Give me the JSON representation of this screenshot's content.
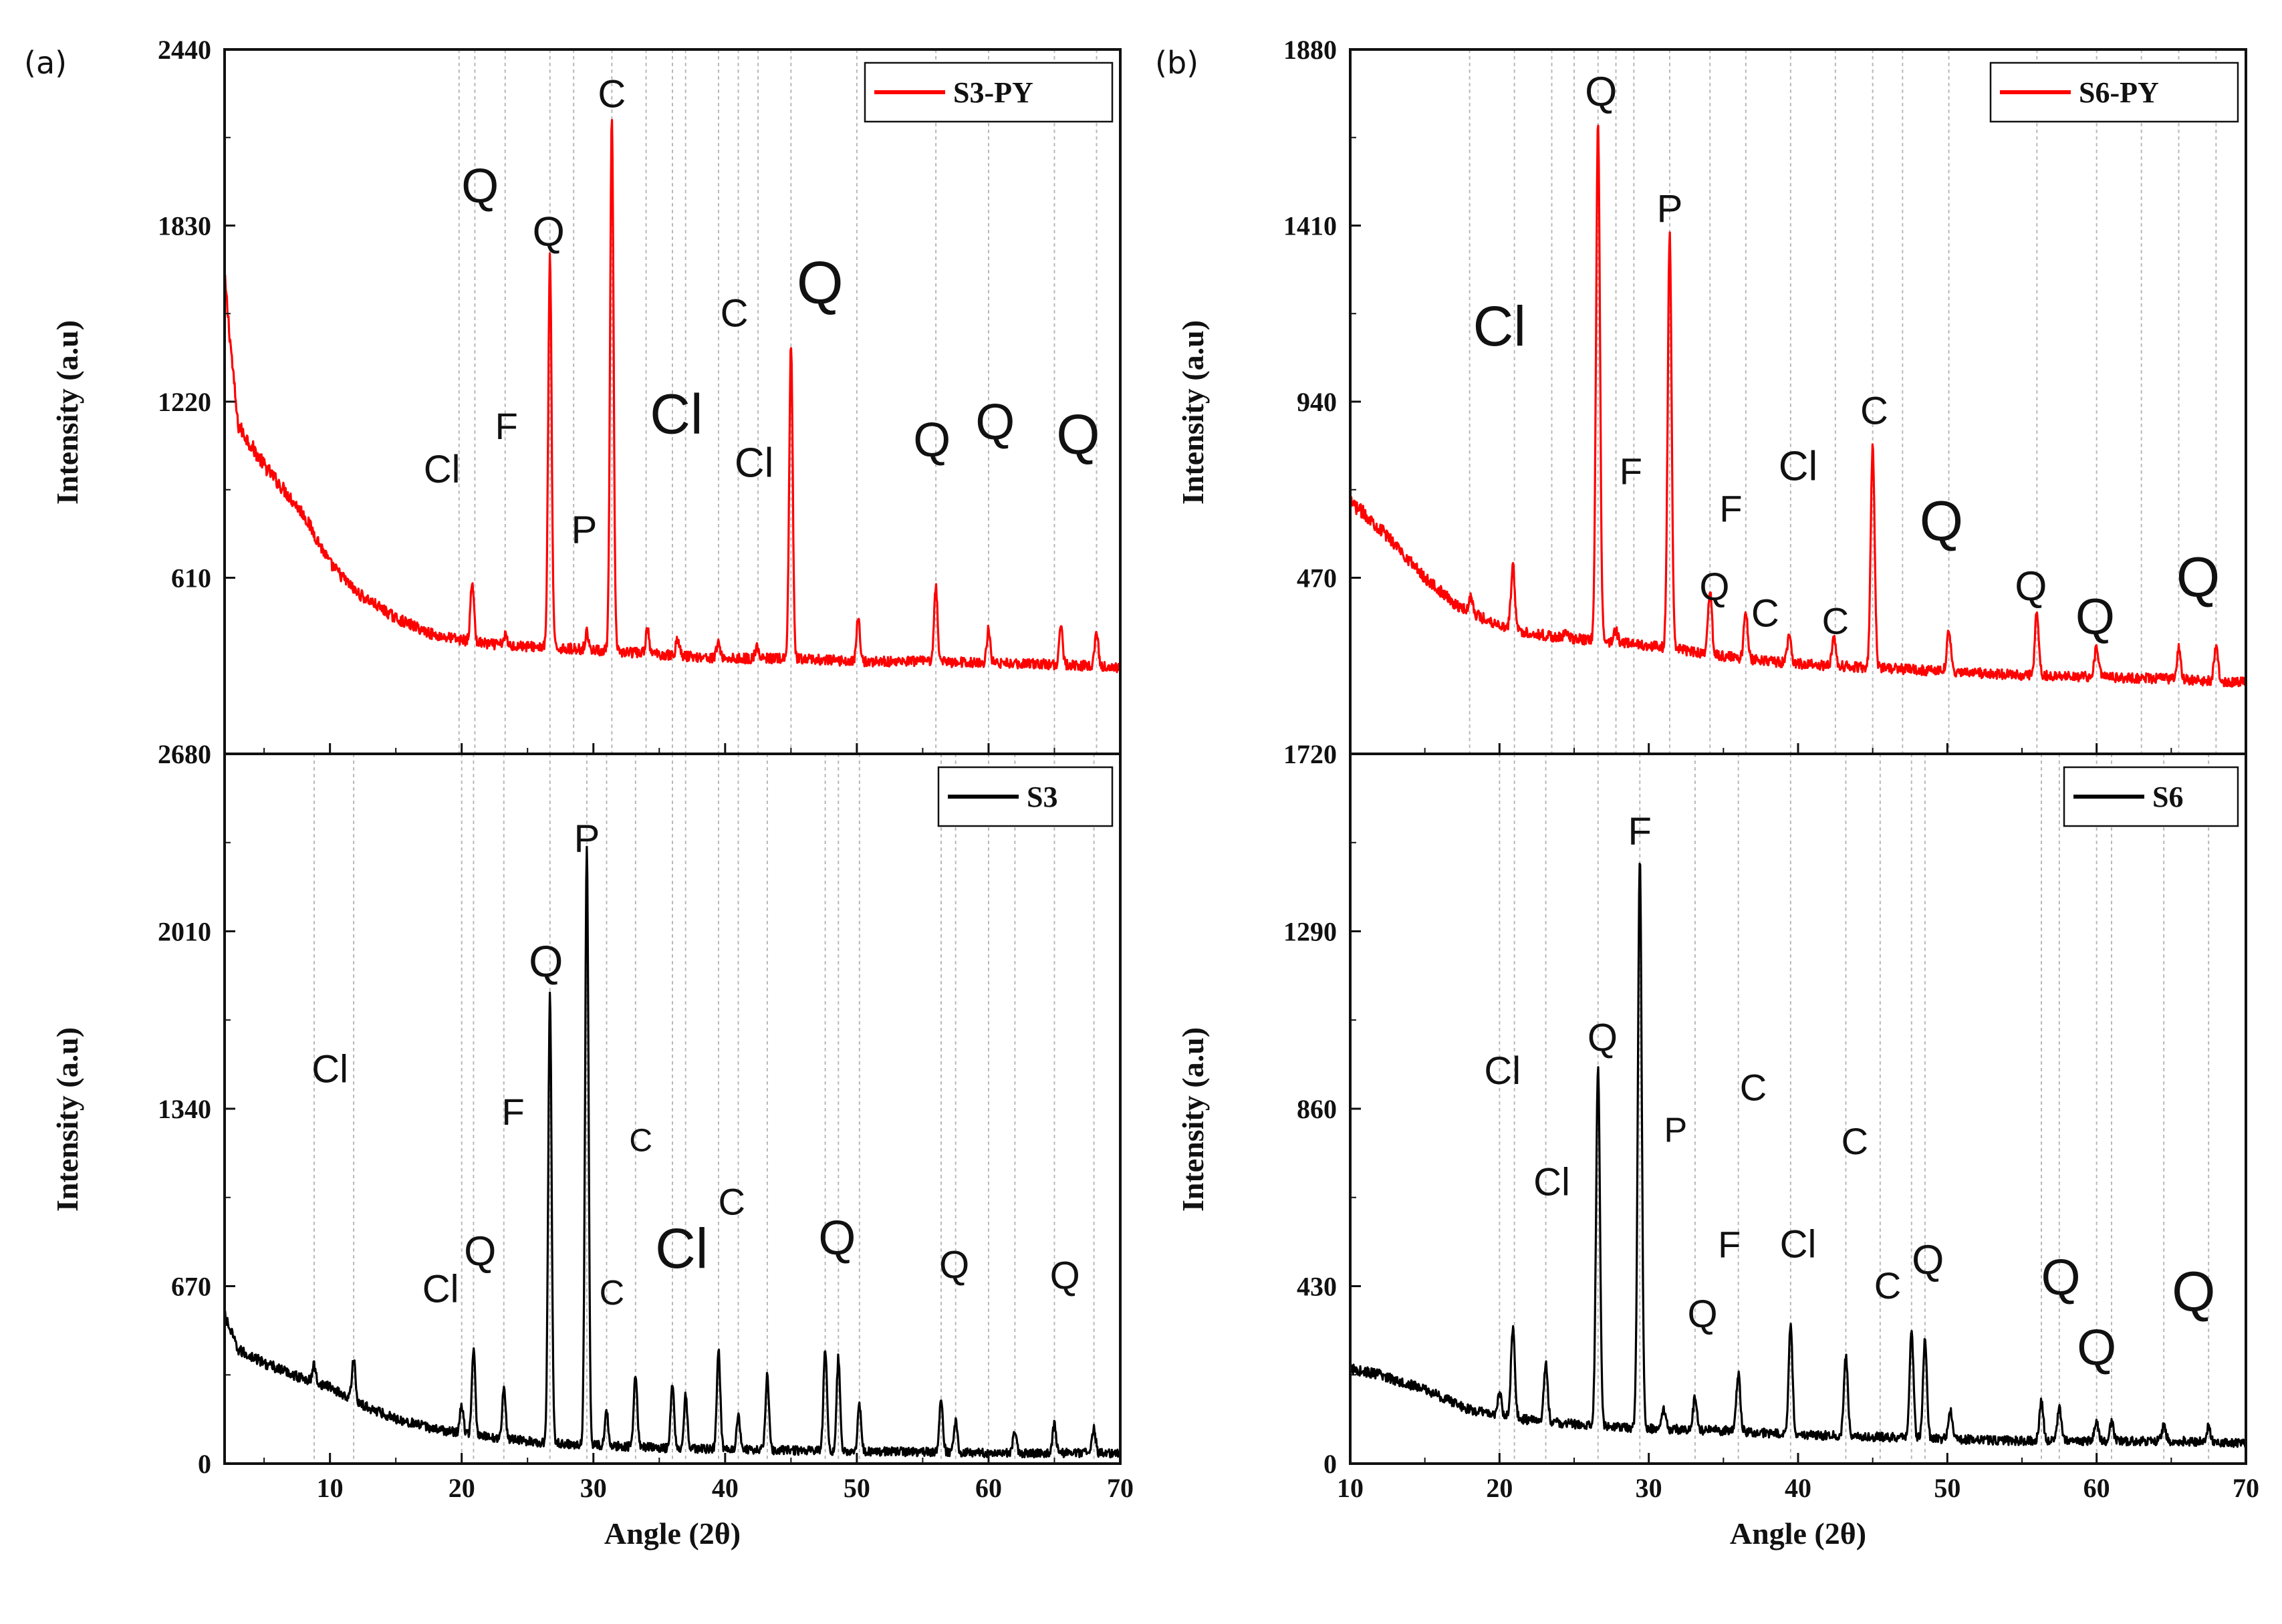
{
  "figure": {
    "panel_a_tag": "(a)",
    "panel_b_tag": "(b)"
  },
  "chart_data": [
    {
      "id": "a_top",
      "type": "line",
      "panel": "(a)",
      "position": "top",
      "series": [
        {
          "name": "S3-PY",
          "color": "#ff0000"
        }
      ],
      "legend": "S3-PY",
      "legend_position": "top-right",
      "ylabel": "Intensity (a.u)",
      "xlabel": "",
      "ylim": [
        0,
        2440
      ],
      "yticks": [
        2440,
        1830,
        1220,
        610
      ],
      "xlim": [
        2,
        70
      ],
      "xticks": [],
      "show_x_ticklabels": false,
      "guide_lines_2theta": [
        19.8,
        21,
        23.3,
        26.7,
        28.5,
        31.4,
        34,
        36,
        37,
        39.5,
        41,
        42.5,
        45,
        50,
        56,
        60,
        65,
        68.2
      ],
      "baseline": [
        [
          2,
          1650
        ],
        [
          3,
          1140
        ],
        [
          5,
          1000
        ],
        [
          8,
          830
        ],
        [
          10,
          660
        ],
        [
          12,
          560
        ],
        [
          15,
          470
        ],
        [
          18,
          410
        ],
        [
          22,
          380
        ],
        [
          26,
          370
        ],
        [
          30,
          360
        ],
        [
          35,
          345
        ],
        [
          40,
          330
        ],
        [
          45,
          330
        ],
        [
          50,
          320
        ],
        [
          55,
          320
        ],
        [
          60,
          315
        ],
        [
          65,
          310
        ],
        [
          70,
          300
        ]
      ],
      "peaks": [
        {
          "x": 20.8,
          "y": 600
        },
        {
          "x": 23.3,
          "y": 410
        },
        {
          "x": 26.7,
          "y": 1720
        },
        {
          "x": 29.5,
          "y": 420
        },
        {
          "x": 31.4,
          "y": 2200
        },
        {
          "x": 34.1,
          "y": 430
        },
        {
          "x": 36.4,
          "y": 400
        },
        {
          "x": 39.5,
          "y": 390
        },
        {
          "x": 42.4,
          "y": 370
        },
        {
          "x": 45.0,
          "y": 1420
        },
        {
          "x": 50.1,
          "y": 470
        },
        {
          "x": 56.0,
          "y": 580
        },
        {
          "x": 60.0,
          "y": 430
        },
        {
          "x": 65.5,
          "y": 440
        },
        {
          "x": 68.2,
          "y": 420
        }
      ],
      "annotations": [
        {
          "text": "C",
          "x": 31.4,
          "y": 2240,
          "size": 58
        },
        {
          "text": "Q",
          "x": 21.4,
          "y": 1910,
          "size": 72
        },
        {
          "text": "Q",
          "x": 26.6,
          "y": 1760,
          "size": 62
        },
        {
          "text": "C",
          "x": 40.7,
          "y": 1480,
          "size": 58
        },
        {
          "text": "Q",
          "x": 47.2,
          "y": 1560,
          "size": 90
        },
        {
          "text": "Cl",
          "x": 36.3,
          "y": 1110,
          "size": 84
        },
        {
          "text": "F",
          "x": 23.4,
          "y": 1090,
          "size": 56
        },
        {
          "text": "Cl",
          "x": 18.5,
          "y": 940,
          "size": 58
        },
        {
          "text": "Cl",
          "x": 42.2,
          "y": 960,
          "size": 62
        },
        {
          "text": "P",
          "x": 29.3,
          "y": 730,
          "size": 58
        },
        {
          "text": "Q",
          "x": 55.7,
          "y": 1030,
          "size": 72
        },
        {
          "text": "Q",
          "x": 60.5,
          "y": 1090,
          "size": 76
        },
        {
          "text": "Q",
          "x": 66.8,
          "y": 1040,
          "size": 84
        }
      ]
    },
    {
      "id": "a_bottom",
      "type": "line",
      "panel": "(a)",
      "position": "bottom",
      "series": [
        {
          "name": "S3",
          "color": "#000000"
        }
      ],
      "legend": "S3",
      "legend_position": "top-right",
      "ylabel": "Intensity (a.u)",
      "xlabel": "Angle (2θ)",
      "ylim": [
        0,
        2680
      ],
      "yticks": [
        2680,
        2010,
        1340,
        670,
        0
      ],
      "xlim": [
        2,
        70
      ],
      "xticks": [
        10,
        20,
        30,
        40,
        50,
        60,
        70
      ],
      "show_x_ticklabels": true,
      "guide_lines_2theta": [
        8.8,
        11.8,
        20,
        20.9,
        23.2,
        26.7,
        29.5,
        31,
        33.2,
        36,
        37,
        39.5,
        41,
        43.2,
        47.6,
        48.6,
        50.2,
        56.4,
        57.5,
        60,
        62,
        65,
        68
      ],
      "baseline": [
        [
          2,
          560
        ],
        [
          3,
          430
        ],
        [
          5,
          380
        ],
        [
          8,
          320
        ],
        [
          10,
          290
        ],
        [
          12,
          230
        ],
        [
          15,
          170
        ],
        [
          18,
          130
        ],
        [
          22,
          100
        ],
        [
          26,
          80
        ],
        [
          30,
          70
        ],
        [
          35,
          60
        ],
        [
          40,
          55
        ],
        [
          45,
          50
        ],
        [
          50,
          45
        ],
        [
          55,
          45
        ],
        [
          60,
          40
        ],
        [
          65,
          40
        ],
        [
          70,
          40
        ]
      ],
      "peaks": [
        {
          "x": 8.8,
          "y": 370
        },
        {
          "x": 11.8,
          "y": 400
        },
        {
          "x": 20.0,
          "y": 220
        },
        {
          "x": 20.9,
          "y": 430
        },
        {
          "x": 23.2,
          "y": 280
        },
        {
          "x": 26.7,
          "y": 1770
        },
        {
          "x": 29.5,
          "y": 2330
        },
        {
          "x": 31.0,
          "y": 200
        },
        {
          "x": 33.2,
          "y": 340
        },
        {
          "x": 36.0,
          "y": 300
        },
        {
          "x": 37.0,
          "y": 260
        },
        {
          "x": 39.5,
          "y": 430
        },
        {
          "x": 41.0,
          "y": 180
        },
        {
          "x": 43.2,
          "y": 340
        },
        {
          "x": 47.6,
          "y": 440
        },
        {
          "x": 48.6,
          "y": 400
        },
        {
          "x": 50.2,
          "y": 220
        },
        {
          "x": 56.4,
          "y": 240
        },
        {
          "x": 57.5,
          "y": 160
        },
        {
          "x": 62.0,
          "y": 130
        },
        {
          "x": 65.0,
          "y": 150
        },
        {
          "x": 68.0,
          "y": 130
        }
      ],
      "annotations": [
        {
          "text": "P",
          "x": 29.5,
          "y": 2310,
          "size": 58
        },
        {
          "text": "Q",
          "x": 26.4,
          "y": 1840,
          "size": 66
        },
        {
          "text": "Cl",
          "x": 10.0,
          "y": 1440,
          "size": 58
        },
        {
          "text": "F",
          "x": 23.9,
          "y": 1280,
          "size": 56
        },
        {
          "text": "C",
          "x": 33.6,
          "y": 1180,
          "size": 48
        },
        {
          "text": "C",
          "x": 40.5,
          "y": 940,
          "size": 56
        },
        {
          "text": "Cl",
          "x": 36.7,
          "y": 740,
          "size": 84
        },
        {
          "text": "Q",
          "x": 21.4,
          "y": 750,
          "size": 62
        },
        {
          "text": "Q",
          "x": 48.5,
          "y": 790,
          "size": 72
        },
        {
          "text": "Q",
          "x": 57.4,
          "y": 700,
          "size": 58
        },
        {
          "text": "Q",
          "x": 65.8,
          "y": 660,
          "size": 58
        },
        {
          "text": "Cl",
          "x": 18.4,
          "y": 610,
          "size": 58
        },
        {
          "text": "C",
          "x": 31.4,
          "y": 600,
          "size": 52
        }
      ]
    },
    {
      "id": "b_top",
      "type": "line",
      "panel": "(b)",
      "position": "top",
      "series": [
        {
          "name": "S6-PY",
          "color": "#ff0000"
        }
      ],
      "legend": "S6-PY",
      "legend_position": "top-right",
      "ylabel": "Intensity (a.u)",
      "xlabel": "",
      "ylim": [
        0,
        1880
      ],
      "yticks": [
        1880,
        1410,
        940,
        470
      ],
      "xlim": [
        10,
        70
      ],
      "xticks": [],
      "show_x_ticklabels": false,
      "guide_lines_2theta": [
        18,
        21,
        23.5,
        25,
        26.6,
        27.8,
        29,
        31.4,
        34.1,
        36.5,
        39.5,
        42.5,
        45,
        47,
        50.1,
        56,
        60,
        63,
        65.5,
        68
      ],
      "baseline": [
        [
          10,
          670
        ],
        [
          11,
          640
        ],
        [
          13,
          560
        ],
        [
          15,
          470
        ],
        [
          17,
          400
        ],
        [
          19,
          360
        ],
        [
          21,
          330
        ],
        [
          24,
          310
        ],
        [
          27,
          300
        ],
        [
          30,
          290
        ],
        [
          35,
          260
        ],
        [
          40,
          240
        ],
        [
          45,
          230
        ],
        [
          50,
          220
        ],
        [
          55,
          210
        ],
        [
          60,
          205
        ],
        [
          65,
          200
        ],
        [
          70,
          190
        ]
      ],
      "peaks": [
        {
          "x": 18.1,
          "y": 420
        },
        {
          "x": 20.9,
          "y": 500
        },
        {
          "x": 24.5,
          "y": 330
        },
        {
          "x": 26.6,
          "y": 1680
        },
        {
          "x": 27.8,
          "y": 330
        },
        {
          "x": 31.4,
          "y": 1390
        },
        {
          "x": 34.1,
          "y": 430
        },
        {
          "x": 36.5,
          "y": 380
        },
        {
          "x": 39.4,
          "y": 310
        },
        {
          "x": 42.4,
          "y": 310
        },
        {
          "x": 45.0,
          "y": 820
        },
        {
          "x": 50.1,
          "y": 330
        },
        {
          "x": 56.0,
          "y": 380
        },
        {
          "x": 60.0,
          "y": 290
        },
        {
          "x": 65.5,
          "y": 280
        },
        {
          "x": 68.0,
          "y": 290
        }
      ],
      "annotations": [
        {
          "text": "Q",
          "x": 26.8,
          "y": 1730,
          "size": 62
        },
        {
          "text": "P",
          "x": 31.4,
          "y": 1420,
          "size": 58
        },
        {
          "text": "Cl",
          "x": 20.0,
          "y": 1090,
          "size": 84
        },
        {
          "text": "F",
          "x": 28.8,
          "y": 720,
          "size": 56
        },
        {
          "text": "F",
          "x": 35.5,
          "y": 620,
          "size": 56
        },
        {
          "text": "Cl",
          "x": 40.0,
          "y": 730,
          "size": 62
        },
        {
          "text": "C",
          "x": 45.1,
          "y": 880,
          "size": 58
        },
        {
          "text": "Q",
          "x": 49.6,
          "y": 570,
          "size": 84
        },
        {
          "text": "Q",
          "x": 34.4,
          "y": 410,
          "size": 58
        },
        {
          "text": "C",
          "x": 37.8,
          "y": 340,
          "size": 58
        },
        {
          "text": "C",
          "x": 42.5,
          "y": 320,
          "size": 56
        },
        {
          "text": "Q",
          "x": 55.6,
          "y": 410,
          "size": 62
        },
        {
          "text": "Q",
          "x": 59.9,
          "y": 320,
          "size": 76
        },
        {
          "text": "Q",
          "x": 66.8,
          "y": 420,
          "size": 84
        }
      ]
    },
    {
      "id": "b_bottom",
      "type": "line",
      "panel": "(b)",
      "position": "bottom",
      "series": [
        {
          "name": "S6",
          "color": "#000000"
        }
      ],
      "legend": "S6",
      "legend_position": "top-right",
      "ylabel": "Intensity (a.u)",
      "xlabel": "Angle (2θ)",
      "ylim": [
        0,
        1720
      ],
      "yticks": [
        1720,
        1290,
        860,
        430,
        0
      ],
      "xlim": [
        10,
        70
      ],
      "xticks": [
        10,
        20,
        30,
        40,
        50,
        60,
        70
      ],
      "show_x_ticklabels": true,
      "guide_lines_2theta": [
        20,
        21,
        23.1,
        26.6,
        29.4,
        33.1,
        36,
        39.5,
        43.2,
        45.5,
        47.6,
        48.5,
        56.3,
        57.5,
        60,
        61,
        64.5,
        67.5
      ],
      "baseline": [
        [
          10,
          230
        ],
        [
          12,
          215
        ],
        [
          15,
          180
        ],
        [
          18,
          130
        ],
        [
          21,
          110
        ],
        [
          25,
          95
        ],
        [
          30,
          85
        ],
        [
          35,
          80
        ],
        [
          40,
          70
        ],
        [
          45,
          65
        ],
        [
          50,
          60
        ],
        [
          55,
          55
        ],
        [
          60,
          55
        ],
        [
          65,
          55
        ],
        [
          70,
          50
        ]
      ],
      "peaks": [
        {
          "x": 20.0,
          "y": 170
        },
        {
          "x": 20.9,
          "y": 330
        },
        {
          "x": 23.1,
          "y": 240
        },
        {
          "x": 26.6,
          "y": 960
        },
        {
          "x": 29.4,
          "y": 1470
        },
        {
          "x": 31.0,
          "y": 130
        },
        {
          "x": 33.1,
          "y": 160
        },
        {
          "x": 36.0,
          "y": 220
        },
        {
          "x": 39.5,
          "y": 330
        },
        {
          "x": 43.2,
          "y": 260
        },
        {
          "x": 47.6,
          "y": 320
        },
        {
          "x": 48.5,
          "y": 300
        },
        {
          "x": 50.2,
          "y": 130
        },
        {
          "x": 56.3,
          "y": 150
        },
        {
          "x": 57.5,
          "y": 140
        },
        {
          "x": 60.0,
          "y": 100
        },
        {
          "x": 61.0,
          "y": 100
        },
        {
          "x": 64.5,
          "y": 90
        },
        {
          "x": 67.5,
          "y": 90
        }
      ],
      "annotations": [
        {
          "text": "F",
          "x": 29.4,
          "y": 1500,
          "size": 58
        },
        {
          "text": "Q",
          "x": 26.9,
          "y": 1000,
          "size": 58
        },
        {
          "text": "Cl",
          "x": 20.2,
          "y": 920,
          "size": 58
        },
        {
          "text": "C",
          "x": 37.0,
          "y": 880,
          "size": 56
        },
        {
          "text": "P",
          "x": 31.8,
          "y": 780,
          "size": 52
        },
        {
          "text": "C",
          "x": 43.8,
          "y": 750,
          "size": 56
        },
        {
          "text": "Cl",
          "x": 23.5,
          "y": 650,
          "size": 58
        },
        {
          "text": "F",
          "x": 35.4,
          "y": 500,
          "size": 56
        },
        {
          "text": "Cl",
          "x": 40.0,
          "y": 500,
          "size": 58
        },
        {
          "text": "C",
          "x": 46.0,
          "y": 400,
          "size": 56
        },
        {
          "text": "Q",
          "x": 48.7,
          "y": 460,
          "size": 62
        },
        {
          "text": "Q",
          "x": 33.6,
          "y": 330,
          "size": 58
        },
        {
          "text": "Q",
          "x": 57.6,
          "y": 410,
          "size": 76
        },
        {
          "text": "Q",
          "x": 60.0,
          "y": 240,
          "size": 76
        },
        {
          "text": "Q",
          "x": 66.5,
          "y": 370,
          "size": 84
        }
      ]
    }
  ]
}
